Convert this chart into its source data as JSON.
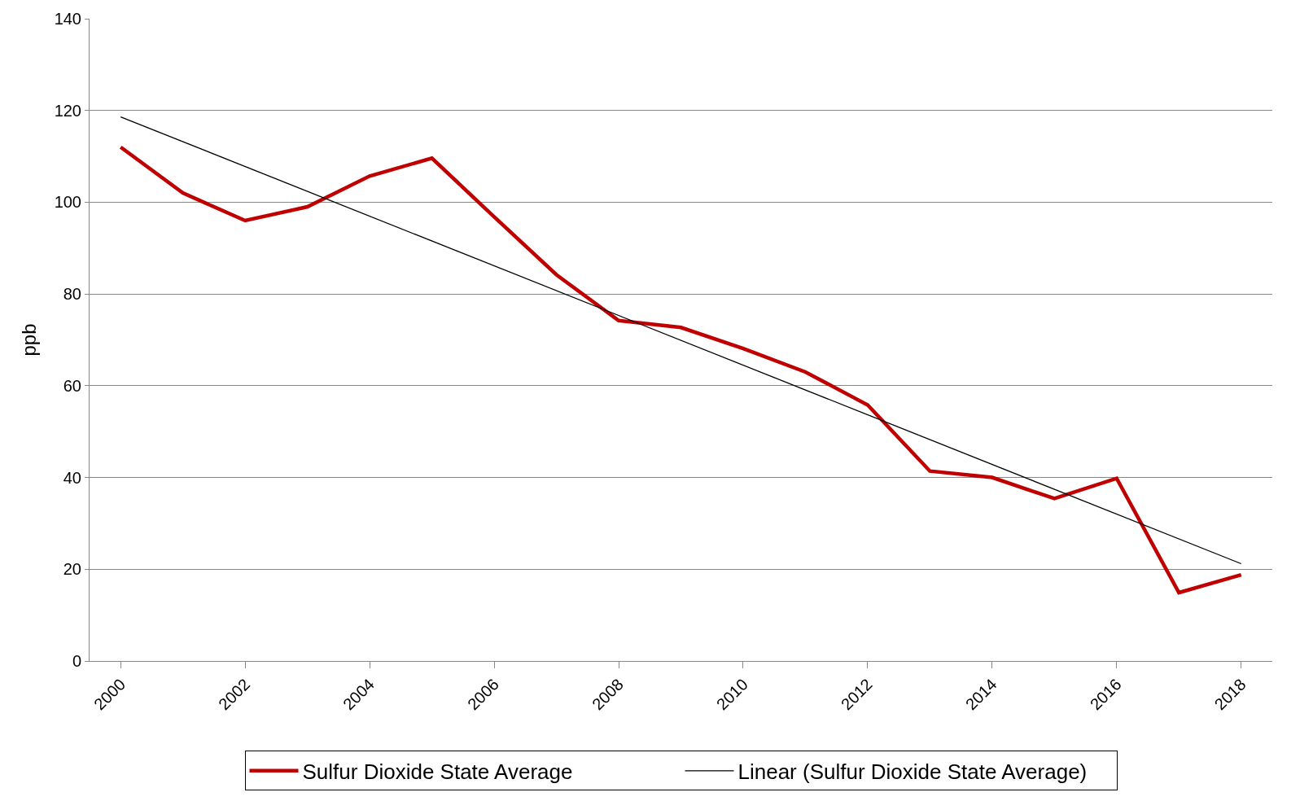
{
  "chart_data": {
    "type": "line",
    "ylabel": "ppb",
    "categories": [
      "2000",
      null,
      "2002",
      null,
      "2004",
      null,
      "2006",
      null,
      "2008",
      null,
      "2010",
      null,
      "2012",
      null,
      "2014",
      null,
      "2016",
      null,
      "2018"
    ],
    "series": [
      {
        "name": "Sulfur Dioxide State Average",
        "color": "#c00000",
        "values": [
          112,
          102,
          96,
          99,
          105.7,
          109.6,
          96.8,
          84.2,
          74.2,
          72.7,
          68.1,
          63,
          55.8,
          41.4,
          40,
          35.4,
          39.8,
          14.9,
          18.8
        ]
      },
      {
        "name": "Linear (Sulfur Dioxide State Average)",
        "color": "#000000",
        "values": [
          118.6,
          null,
          null,
          null,
          null,
          null,
          null,
          null,
          null,
          null,
          null,
          null,
          null,
          null,
          null,
          null,
          null,
          null,
          21.2
        ]
      }
    ],
    "ylim": [
      0,
      140
    ],
    "yticks": [
      0,
      20,
      40,
      60,
      80,
      100,
      120,
      140
    ],
    "grid": "y",
    "legend": "bottom",
    "marker": "none"
  }
}
